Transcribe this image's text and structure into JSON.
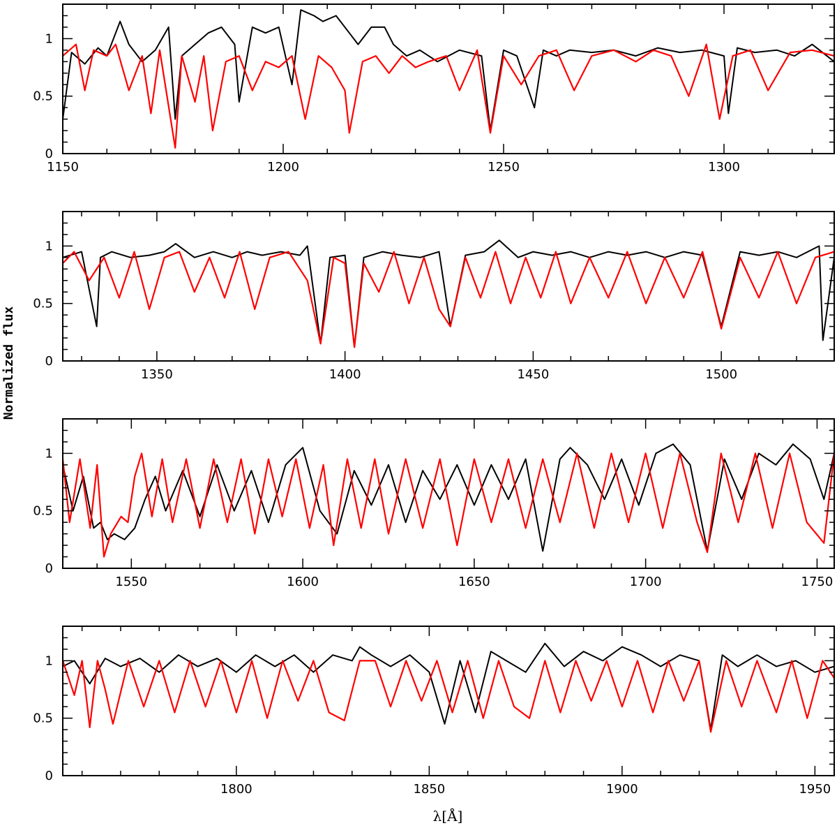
{
  "figure": {
    "ylabel": "Normalized flux",
    "xlabel": "λ[Å]"
  },
  "chart_data": [
    {
      "type": "line",
      "xlim": [
        1150,
        1325
      ],
      "ylim": [
        0,
        1.3
      ],
      "xticks": [
        1150,
        1200,
        1250,
        1300
      ],
      "yticks": [
        0,
        0.5,
        1
      ],
      "ytick_labels": [
        "0",
        "0.5",
        "1"
      ],
      "grid": false,
      "series": [
        {
          "color": "#000000",
          "x": [
            1150,
            1152,
            1155,
            1158,
            1160,
            1163,
            1165,
            1168,
            1171,
            1174,
            1175.5,
            1177,
            1180,
            1183,
            1186,
            1189,
            1190,
            1193,
            1196,
            1199,
            1202,
            1204,
            1207,
            1209,
            1212,
            1215,
            1217,
            1220,
            1223,
            1225,
            1228,
            1231,
            1235,
            1240,
            1245,
            1247,
            1250,
            1253,
            1257,
            1259,
            1262,
            1265,
            1270,
            1275,
            1280,
            1285,
            1290,
            1295,
            1300,
            1301,
            1303,
            1307,
            1312,
            1316,
            1320,
            1325
          ],
          "y": [
            0.3,
            0.88,
            0.78,
            0.92,
            0.85,
            1.15,
            0.95,
            0.8,
            0.9,
            1.1,
            0.3,
            0.85,
            0.95,
            1.05,
            1.1,
            0.95,
            0.45,
            1.1,
            1.05,
            1.1,
            0.6,
            1.25,
            1.2,
            1.15,
            1.2,
            1.05,
            0.95,
            1.1,
            1.1,
            0.95,
            0.85,
            0.9,
            0.8,
            0.9,
            0.85,
            0.2,
            0.9,
            0.85,
            0.4,
            0.9,
            0.85,
            0.9,
            0.88,
            0.9,
            0.85,
            0.92,
            0.88,
            0.9,
            0.85,
            0.35,
            0.92,
            0.88,
            0.9,
            0.85,
            0.95,
            0.8
          ]
        },
        {
          "color": "#ff0000",
          "x": [
            1150,
            1153,
            1155,
            1157,
            1160,
            1162,
            1165,
            1168,
            1170,
            1172,
            1175.5,
            1177,
            1180,
            1182,
            1184,
            1187,
            1190,
            1193,
            1196,
            1199,
            1202,
            1205,
            1208,
            1211,
            1214,
            1215,
            1218,
            1221,
            1224,
            1227,
            1230,
            1233,
            1237,
            1240,
            1244,
            1247,
            1250,
            1254,
            1258,
            1262,
            1266,
            1270,
            1275,
            1280,
            1284,
            1288,
            1292,
            1296,
            1299,
            1302,
            1306,
            1310,
            1315,
            1320,
            1325
          ],
          "y": [
            0.85,
            0.95,
            0.55,
            0.9,
            0.85,
            0.95,
            0.55,
            0.85,
            0.35,
            0.9,
            0.05,
            0.85,
            0.45,
            0.85,
            0.2,
            0.8,
            0.85,
            0.55,
            0.8,
            0.75,
            0.85,
            0.3,
            0.85,
            0.75,
            0.55,
            0.18,
            0.8,
            0.85,
            0.7,
            0.85,
            0.75,
            0.8,
            0.85,
            0.55,
            0.9,
            0.18,
            0.85,
            0.6,
            0.85,
            0.9,
            0.55,
            0.85,
            0.9,
            0.8,
            0.9,
            0.85,
            0.5,
            0.95,
            0.3,
            0.85,
            0.9,
            0.55,
            0.88,
            0.9,
            0.85
          ]
        }
      ]
    },
    {
      "type": "line",
      "xlim": [
        1325,
        1530
      ],
      "ylim": [
        0,
        1.3
      ],
      "xticks": [
        1350,
        1400,
        1450,
        1500
      ],
      "yticks": [
        0,
        0.5,
        1
      ],
      "ytick_labels": [
        "0",
        "0.5",
        "1"
      ],
      "grid": false,
      "series": [
        {
          "color": "#000000",
          "x": [
            1325,
            1330,
            1334,
            1335,
            1338,
            1343,
            1348,
            1352,
            1355,
            1360,
            1365,
            1370,
            1374,
            1378,
            1383,
            1388,
            1390,
            1393.5,
            1396,
            1400,
            1402.5,
            1405,
            1410,
            1415,
            1420,
            1425,
            1428,
            1432,
            1437,
            1441,
            1446,
            1450,
            1455,
            1460,
            1465,
            1470,
            1475,
            1480,
            1485,
            1490,
            1495,
            1500,
            1505,
            1510,
            1515,
            1520,
            1526,
            1527,
            1530
          ],
          "y": [
            0.9,
            0.95,
            0.3,
            0.9,
            0.95,
            0.9,
            0.92,
            0.95,
            1.02,
            0.9,
            0.95,
            0.9,
            0.95,
            0.92,
            0.95,
            0.92,
            1.0,
            0.15,
            0.9,
            0.92,
            0.12,
            0.9,
            0.95,
            0.92,
            0.9,
            0.95,
            0.3,
            0.92,
            0.95,
            1.05,
            0.9,
            0.95,
            0.92,
            0.95,
            0.9,
            0.95,
            0.92,
            0.95,
            0.9,
            0.95,
            0.92,
            0.3,
            0.95,
            0.92,
            0.95,
            0.9,
            1.0,
            0.18,
            0.9
          ]
        },
        {
          "color": "#ff0000",
          "x": [
            1325,
            1328,
            1332,
            1336,
            1340,
            1344,
            1348,
            1352,
            1356,
            1360,
            1364,
            1368,
            1372,
            1376,
            1380,
            1385,
            1390,
            1393.5,
            1397,
            1400,
            1402.5,
            1405,
            1409,
            1413,
            1417,
            1421,
            1425,
            1428,
            1432,
            1436,
            1440,
            1444,
            1448,
            1452,
            1456,
            1460,
            1465,
            1470,
            1475,
            1480,
            1485,
            1490,
            1495,
            1500,
            1505,
            1510,
            1515,
            1520,
            1525,
            1530
          ],
          "y": [
            0.85,
            0.95,
            0.7,
            0.9,
            0.55,
            0.95,
            0.45,
            0.9,
            0.95,
            0.6,
            0.9,
            0.55,
            0.95,
            0.45,
            0.9,
            0.95,
            0.7,
            0.15,
            0.9,
            0.85,
            0.12,
            0.85,
            0.6,
            0.95,
            0.5,
            0.9,
            0.45,
            0.3,
            0.9,
            0.55,
            0.95,
            0.5,
            0.9,
            0.55,
            0.95,
            0.5,
            0.9,
            0.55,
            0.95,
            0.5,
            0.9,
            0.55,
            0.95,
            0.28,
            0.9,
            0.55,
            0.95,
            0.5,
            0.9,
            0.95
          ]
        }
      ]
    },
    {
      "type": "line",
      "xlim": [
        1530,
        1755
      ],
      "ylim": [
        0,
        1.3
      ],
      "xticks": [
        1550,
        1600,
        1650,
        1700,
        1750
      ],
      "yticks": [
        0,
        0.5,
        1
      ],
      "ytick_labels": [
        "0",
        "0.5",
        "1"
      ],
      "grid": false,
      "series": [
        {
          "color": "#000000",
          "x": [
            1530,
            1533,
            1536,
            1539,
            1541,
            1543,
            1545,
            1548,
            1551,
            1554,
            1557,
            1560,
            1565,
            1570,
            1575,
            1580,
            1585,
            1590,
            1595,
            1600,
            1605,
            1610,
            1615,
            1620,
            1625,
            1630,
            1635,
            1640,
            1645,
            1650,
            1655,
            1660,
            1665,
            1670,
            1675,
            1678,
            1683,
            1688,
            1693,
            1698,
            1703,
            1708,
            1713,
            1718,
            1723,
            1728,
            1733,
            1738,
            1743,
            1748,
            1752,
            1755
          ],
          "y": [
            0.9,
            0.5,
            0.8,
            0.35,
            0.4,
            0.25,
            0.3,
            0.25,
            0.35,
            0.6,
            0.8,
            0.5,
            0.85,
            0.45,
            0.9,
            0.5,
            0.85,
            0.4,
            0.9,
            1.05,
            0.5,
            0.3,
            0.85,
            0.55,
            0.9,
            0.4,
            0.85,
            0.6,
            0.9,
            0.55,
            0.9,
            0.6,
            0.95,
            0.15,
            0.95,
            1.05,
            0.9,
            0.6,
            0.95,
            0.55,
            1.0,
            1.08,
            0.9,
            0.15,
            0.95,
            0.6,
            1.0,
            0.9,
            1.08,
            0.95,
            0.6,
            1.0
          ]
        },
        {
          "color": "#ff0000",
          "x": [
            1530,
            1532,
            1535,
            1538,
            1540,
            1542,
            1544,
            1547,
            1549,
            1551,
            1553,
            1556,
            1559,
            1562,
            1566,
            1570,
            1574,
            1578,
            1582,
            1586,
            1590,
            1594,
            1598,
            1602,
            1606,
            1609,
            1613,
            1617,
            1621,
            1625,
            1630,
            1635,
            1640,
            1645,
            1650,
            1655,
            1660,
            1665,
            1670,
            1675,
            1680,
            1685,
            1690,
            1695,
            1700,
            1705,
            1710,
            1715,
            1718,
            1722,
            1727,
            1732,
            1737,
            1742,
            1747,
            1752,
            1755
          ],
          "y": [
            0.95,
            0.4,
            0.95,
            0.35,
            0.9,
            0.1,
            0.3,
            0.45,
            0.4,
            0.8,
            1.0,
            0.45,
            0.95,
            0.4,
            0.95,
            0.35,
            0.95,
            0.4,
            0.95,
            0.3,
            0.95,
            0.45,
            0.95,
            0.35,
            0.9,
            0.2,
            0.95,
            0.35,
            0.95,
            0.3,
            0.95,
            0.35,
            0.95,
            0.2,
            0.95,
            0.4,
            0.95,
            0.35,
            0.95,
            0.4,
            1.0,
            0.35,
            1.0,
            0.4,
            1.0,
            0.35,
            1.0,
            0.4,
            0.14,
            1.0,
            0.4,
            1.0,
            0.35,
            1.0,
            0.4,
            0.22,
            1.0
          ]
        }
      ]
    },
    {
      "type": "line",
      "xlim": [
        1755,
        1955
      ],
      "ylim": [
        0,
        1.3
      ],
      "xticks": [
        1800,
        1850,
        1900,
        1950
      ],
      "yticks": [
        0,
        0.5,
        1
      ],
      "ytick_labels": [
        "0",
        "0.5",
        "1"
      ],
      "grid": false,
      "series": [
        {
          "color": "#000000",
          "x": [
            1755,
            1758,
            1762,
            1766,
            1770,
            1775,
            1780,
            1785,
            1790,
            1795,
            1800,
            1805,
            1810,
            1815,
            1820,
            1825,
            1830,
            1832,
            1835,
            1840,
            1845,
            1850,
            1854,
            1858,
            1862,
            1866,
            1870,
            1875,
            1880,
            1885,
            1890,
            1895,
            1900,
            1905,
            1910,
            1915,
            1920,
            1923,
            1926,
            1930,
            1935,
            1940,
            1945,
            1950,
            1955
          ],
          "y": [
            0.95,
            1.0,
            0.8,
            1.02,
            0.95,
            1.02,
            0.9,
            1.05,
            0.95,
            1.02,
            0.9,
            1.05,
            0.95,
            1.05,
            0.9,
            1.05,
            1.0,
            1.12,
            1.05,
            0.95,
            1.05,
            0.9,
            0.45,
            1.0,
            0.55,
            1.08,
            1.0,
            0.9,
            1.15,
            0.95,
            1.08,
            1.0,
            1.12,
            1.05,
            0.95,
            1.05,
            1.0,
            0.4,
            1.05,
            0.95,
            1.05,
            0.95,
            1.0,
            0.9,
            0.95
          ]
        },
        {
          "color": "#ff0000",
          "x": [
            1755,
            1758,
            1760,
            1762,
            1764,
            1766,
            1768,
            1772,
            1776,
            1780,
            1784,
            1788,
            1792,
            1796,
            1800,
            1804,
            1808,
            1812,
            1816,
            1820,
            1824,
            1828,
            1832,
            1836,
            1840,
            1844,
            1848,
            1852,
            1856,
            1860,
            1864,
            1868,
            1872,
            1876,
            1880,
            1884,
            1888,
            1892,
            1896,
            1900,
            1904,
            1908,
            1912,
            1916,
            1920,
            1923,
            1927,
            1931,
            1935,
            1940,
            1944,
            1948,
            1952,
            1955
          ],
          "y": [
            1.0,
            0.7,
            1.0,
            0.42,
            1.0,
            0.75,
            0.45,
            1.0,
            0.6,
            1.0,
            0.55,
            1.0,
            0.6,
            1.0,
            0.55,
            1.0,
            0.5,
            1.0,
            0.65,
            1.0,
            0.55,
            0.48,
            1.0,
            1.0,
            0.6,
            1.0,
            0.65,
            1.0,
            0.55,
            1.0,
            0.5,
            1.0,
            0.6,
            0.5,
            1.0,
            0.55,
            1.0,
            0.65,
            1.0,
            0.6,
            1.0,
            0.55,
            1.0,
            0.65,
            1.0,
            0.38,
            1.0,
            0.6,
            1.0,
            0.55,
            1.0,
            0.5,
            1.0,
            0.85
          ]
        }
      ]
    }
  ]
}
